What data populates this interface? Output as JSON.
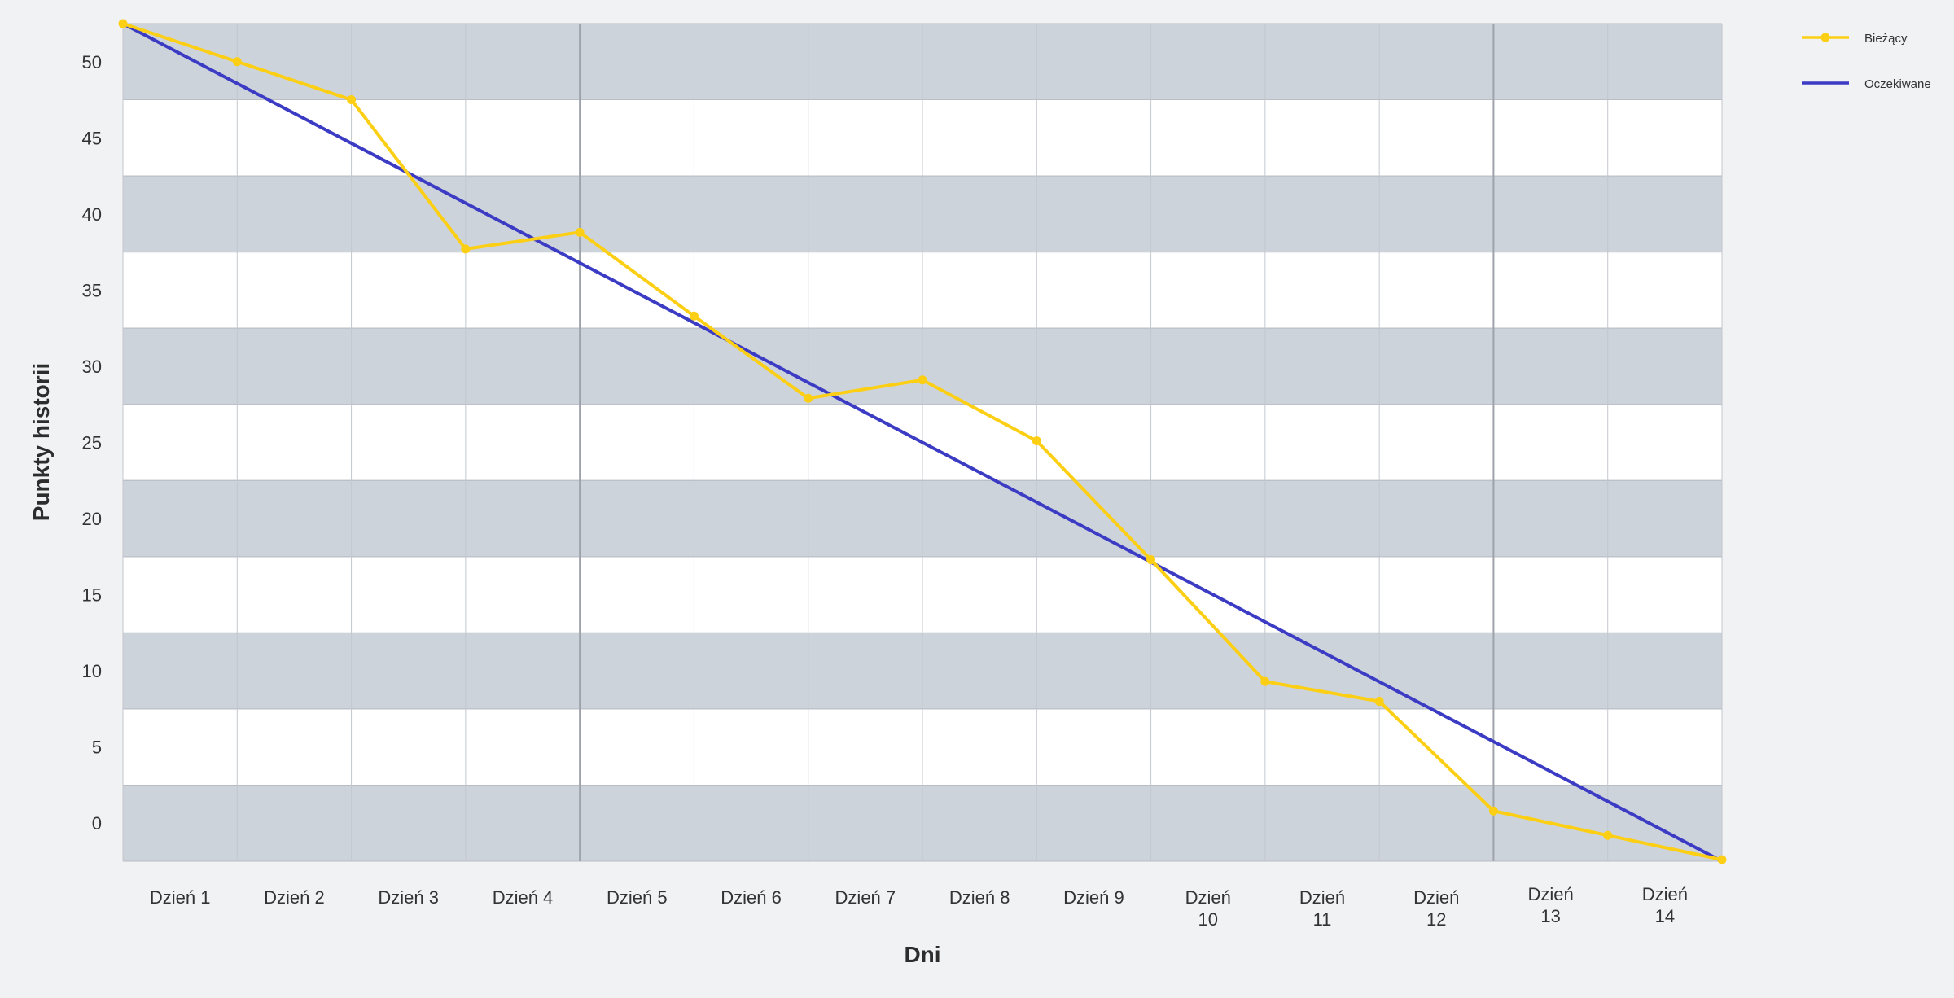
{
  "chart_data": {
    "type": "line",
    "title": "",
    "xlabel": "Dni",
    "ylabel": "Punkty historii",
    "categories": [
      "Dzień 1",
      "Dzień 2",
      "Dzień 3",
      "Dzień 4",
      "Dzień 5",
      "Dzień 6",
      "Dzień 7",
      "Dzień 8",
      "Dzień 9",
      "Dzień 10",
      "Dzień 11",
      "Dzień 12",
      "Dzień 13",
      "Dzień 14"
    ],
    "x_ticks": [
      0,
      1,
      2,
      3,
      4,
      5,
      6,
      7,
      8,
      9,
      10,
      11,
      12,
      13,
      14
    ],
    "y_ticks": [
      0,
      5,
      10,
      15,
      20,
      25,
      30,
      35,
      40,
      45,
      50
    ],
    "ylim": [
      -2.5,
      52.5
    ],
    "xlim": [
      0,
      14
    ],
    "grid": true,
    "legend_position": "top-right",
    "series": [
      {
        "name": "Bieżący",
        "color": "#fccf14",
        "marker": "circle",
        "x": [
          0,
          1,
          2,
          3,
          4,
          5,
          6,
          7,
          8,
          9,
          10,
          11,
          12,
          13,
          14
        ],
        "y": [
          52.5,
          50,
          47.5,
          37.7,
          38.8,
          33.3,
          27.9,
          29.1,
          25.1,
          17.3,
          9.3,
          8.0,
          0.8,
          -0.8,
          -2.4
        ]
      },
      {
        "name": "Oczekiwane",
        "color": "#3b3bc4",
        "marker": "none",
        "x": [
          0,
          14
        ],
        "y": [
          52.5,
          -2.5
        ]
      }
    ]
  }
}
